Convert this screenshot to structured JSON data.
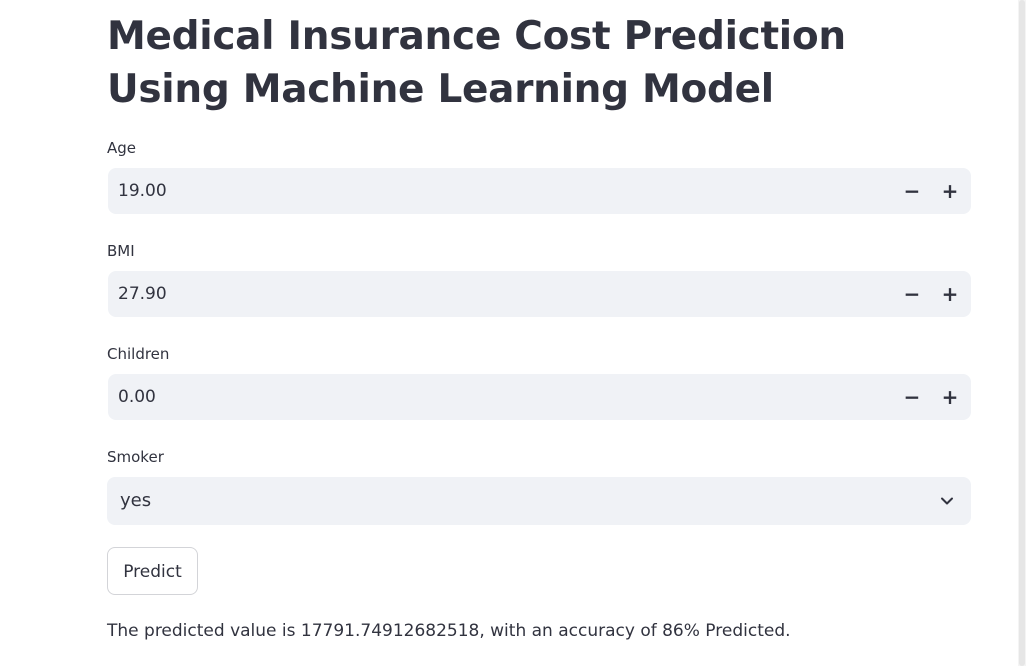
{
  "page": {
    "title": "Medical Insurance Cost Prediction Using Machine Learning Model"
  },
  "fields": {
    "age": {
      "label": "Age",
      "value": "19.00",
      "minus": "−",
      "plus": "+"
    },
    "bmi": {
      "label": "BMI",
      "value": "27.90",
      "minus": "−",
      "plus": "+"
    },
    "children": {
      "label": "Children",
      "value": "0.00",
      "minus": "−",
      "plus": "+"
    },
    "smoker": {
      "label": "Smoker",
      "value": "yes"
    }
  },
  "actions": {
    "predict_label": "Predict"
  },
  "result": {
    "text": "The predicted value is 17791.74912682518, with an accuracy of 86% Predicted."
  },
  "icons": {
    "stepper_minus": "minus-icon",
    "stepper_plus": "plus-icon",
    "dropdown": "chevron-down-icon"
  },
  "colors": {
    "text": "#31333f",
    "input_background": "#f0f2f6",
    "button_border": "#d3d4d8",
    "page_background": "#ffffff"
  }
}
